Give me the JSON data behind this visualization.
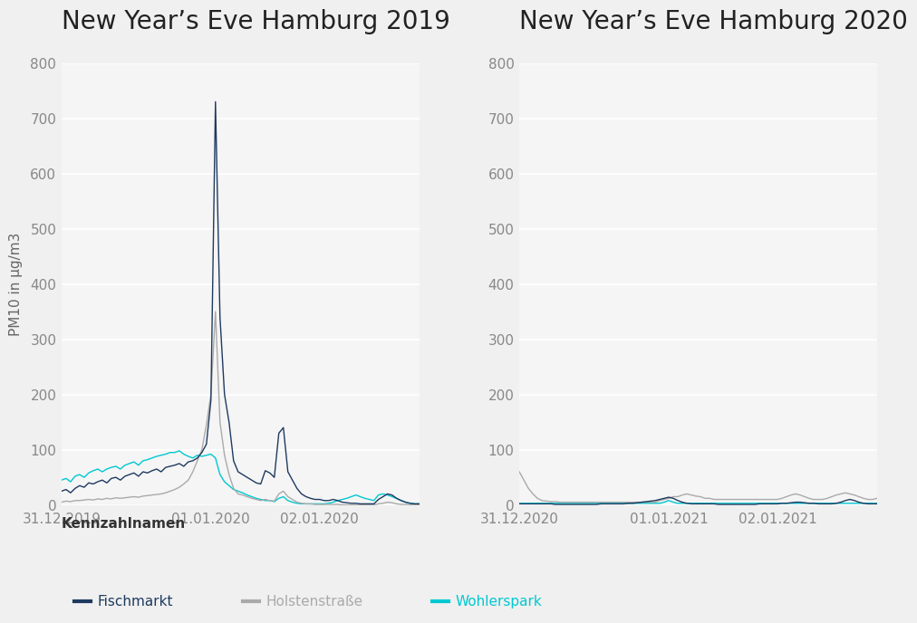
{
  "title_left": "New Year’s Eve Hamburg 2019",
  "title_right": "New Year’s Eve Hamburg 2020",
  "ylabel": "PM10 in μg/m3",
  "legend_title": "Kennzahlnamen",
  "legend_entries": [
    "Fischmarkt",
    "Holstenstraße",
    "Wohlerspark"
  ],
  "colors": {
    "Fischmarkt": "#1e3a5f",
    "Holstenstrasse": "#aaaaaa",
    "Wohlerspark": "#00c8d2"
  },
  "background_color": "#f0f0f0",
  "plot_bg": "#f5f5f5",
  "grid_color": "#ffffff",
  "ylim": [
    0,
    800
  ],
  "yticks": [
    0,
    100,
    200,
    300,
    400,
    500,
    600,
    700,
    800
  ],
  "title_fontsize": 20,
  "axis_fontsize": 11,
  "tick_color": "#888888",
  "legend_fontsize": 11,
  "legend_title_fontsize": 11,
  "2019": {
    "x_ticks_labels": [
      "31.12.2019",
      "01.01.2020",
      "02.01.2020"
    ],
    "x_ticks_pos": [
      0,
      33,
      57
    ],
    "n_points": 80,
    "fischmarkt": [
      25,
      28,
      22,
      30,
      35,
      32,
      40,
      38,
      42,
      45,
      40,
      48,
      50,
      45,
      52,
      55,
      58,
      52,
      60,
      58,
      62,
      65,
      60,
      68,
      70,
      72,
      75,
      70,
      78,
      80,
      85,
      95,
      110,
      190,
      730,
      340,
      200,
      150,
      80,
      60,
      55,
      50,
      45,
      40,
      38,
      62,
      58,
      50,
      130,
      140,
      60,
      45,
      30,
      20,
      15,
      12,
      10,
      10,
      8,
      8,
      10,
      8,
      5,
      4,
      3,
      3,
      2,
      2,
      2,
      2,
      10,
      15,
      20,
      18,
      12,
      8,
      5,
      3,
      2,
      2
    ],
    "holstenstrasse": [
      5,
      7,
      6,
      8,
      8,
      9,
      10,
      9,
      11,
      10,
      12,
      11,
      13,
      12,
      13,
      14,
      15,
      14,
      16,
      17,
      18,
      19,
      20,
      22,
      25,
      28,
      32,
      38,
      45,
      60,
      80,
      100,
      145,
      200,
      350,
      150,
      90,
      55,
      30,
      20,
      18,
      15,
      12,
      10,
      8,
      10,
      8,
      7,
      20,
      25,
      15,
      10,
      5,
      3,
      2,
      2,
      1,
      1,
      1,
      1,
      1,
      1,
      0,
      0,
      0,
      0,
      0,
      0,
      0,
      0,
      2,
      3,
      5,
      4,
      2,
      1,
      1,
      0,
      0,
      0
    ],
    "wohlerspark": [
      45,
      48,
      42,
      52,
      55,
      50,
      58,
      62,
      65,
      60,
      65,
      68,
      70,
      65,
      72,
      75,
      78,
      72,
      80,
      82,
      85,
      88,
      90,
      92,
      95,
      95,
      98,
      92,
      88,
      85,
      90,
      88,
      90,
      92,
      85,
      55,
      42,
      35,
      28,
      25,
      22,
      18,
      15,
      12,
      10,
      8,
      8,
      6,
      12,
      15,
      8,
      5,
      3,
      2,
      2,
      2,
      2,
      2,
      2,
      3,
      5,
      8,
      10,
      12,
      15,
      18,
      15,
      12,
      10,
      8,
      18,
      20,
      18,
      15,
      12,
      8,
      5,
      3,
      2,
      2
    ]
  },
  "2020": {
    "x_ticks_labels": [
      "31.12.2020",
      "01.01.2021",
      "02.01.2021"
    ],
    "x_ticks_pos": [
      0,
      33,
      57
    ],
    "n_points": 80,
    "fischmarkt": [
      2,
      2,
      2,
      2,
      2,
      2,
      2,
      2,
      1,
      1,
      1,
      1,
      1,
      1,
      1,
      1,
      1,
      1,
      2,
      2,
      2,
      2,
      2,
      2,
      3,
      3,
      4,
      5,
      6,
      7,
      8,
      10,
      12,
      14,
      12,
      8,
      5,
      3,
      2,
      2,
      2,
      2,
      2,
      2,
      1,
      1,
      1,
      1,
      1,
      1,
      1,
      1,
      1,
      2,
      2,
      2,
      2,
      2,
      3,
      3,
      4,
      5,
      5,
      4,
      3,
      3,
      2,
      2,
      2,
      2,
      3,
      5,
      8,
      10,
      8,
      5,
      3,
      2,
      2,
      2
    ],
    "holstenstrasse": [
      60,
      45,
      30,
      20,
      12,
      8,
      7,
      6,
      6,
      5,
      5,
      5,
      5,
      5,
      5,
      5,
      5,
      5,
      5,
      5,
      5,
      5,
      5,
      5,
      5,
      5,
      5,
      5,
      5,
      5,
      5,
      8,
      10,
      12,
      15,
      15,
      18,
      20,
      18,
      16,
      15,
      12,
      12,
      10,
      10,
      10,
      10,
      10,
      10,
      10,
      10,
      10,
      10,
      10,
      10,
      10,
      10,
      10,
      12,
      15,
      18,
      20,
      18,
      15,
      12,
      10,
      10,
      10,
      12,
      15,
      18,
      20,
      22,
      20,
      18,
      15,
      12,
      10,
      10,
      12
    ],
    "wohlerspark": [
      3,
      3,
      3,
      3,
      3,
      3,
      3,
      3,
      3,
      3,
      3,
      3,
      3,
      3,
      3,
      3,
      3,
      3,
      3,
      3,
      3,
      3,
      3,
      3,
      3,
      3,
      3,
      3,
      3,
      3,
      3,
      3,
      5,
      8,
      5,
      3,
      3,
      3,
      3,
      3,
      3,
      3,
      3,
      3,
      3,
      3,
      3,
      3,
      3,
      3,
      3,
      3,
      3,
      3,
      3,
      3,
      3,
      3,
      3,
      3,
      3,
      3,
      3,
      3,
      3,
      3,
      3,
      3,
      3,
      3,
      3,
      3,
      3,
      3,
      3,
      3,
      3,
      3,
      3,
      3
    ]
  }
}
